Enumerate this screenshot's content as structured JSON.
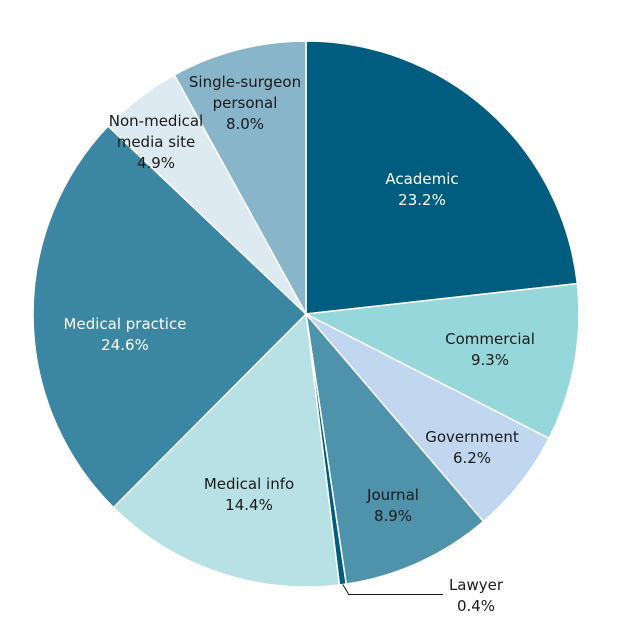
{
  "chart_data": {
    "type": "pie",
    "title": "",
    "start_angle_deg": 0,
    "direction": "clockwise",
    "slices": [
      {
        "label": "Academic",
        "value_label": "23.2%",
        "value": 23.2,
        "color": "#015d7f",
        "text_color": "#ffffff"
      },
      {
        "label": "Commercial",
        "value_label": "9.3%",
        "value": 9.3,
        "color": "#95d7db",
        "text_color": "#1a1a1a"
      },
      {
        "label": "Government",
        "value_label": "6.2%",
        "value": 6.2,
        "color": "#c1d6ef",
        "text_color": "#1a1a1a"
      },
      {
        "label": "Journal",
        "value_label": "8.9%",
        "value": 8.9,
        "color": "#4e92ab",
        "text_color": "#1a1a1a"
      },
      {
        "label": "Lawyer",
        "value_label": "0.4%",
        "value": 0.4,
        "color": "#015d7f",
        "text_color": "#1a1a1a"
      },
      {
        "label": "Medical info",
        "value_label": "14.4%",
        "value": 14.4,
        "color": "#b8e1e6",
        "text_color": "#1a1a1a"
      },
      {
        "label": "Medical practice",
        "value_label": "24.6%",
        "value": 24.6,
        "color": "#3b86a2",
        "text_color": "#ffffff"
      },
      {
        "label": "Non-medical media site",
        "value_label": "4.9%",
        "value": 4.9,
        "color": "#deeaf1",
        "text_color": "#1a1a1a"
      },
      {
        "label": "Single-surgeon personal",
        "value_label": "8.0%",
        "value": 8.0,
        "color": "#88b5c9",
        "text_color": "#1a1a1a"
      }
    ]
  }
}
